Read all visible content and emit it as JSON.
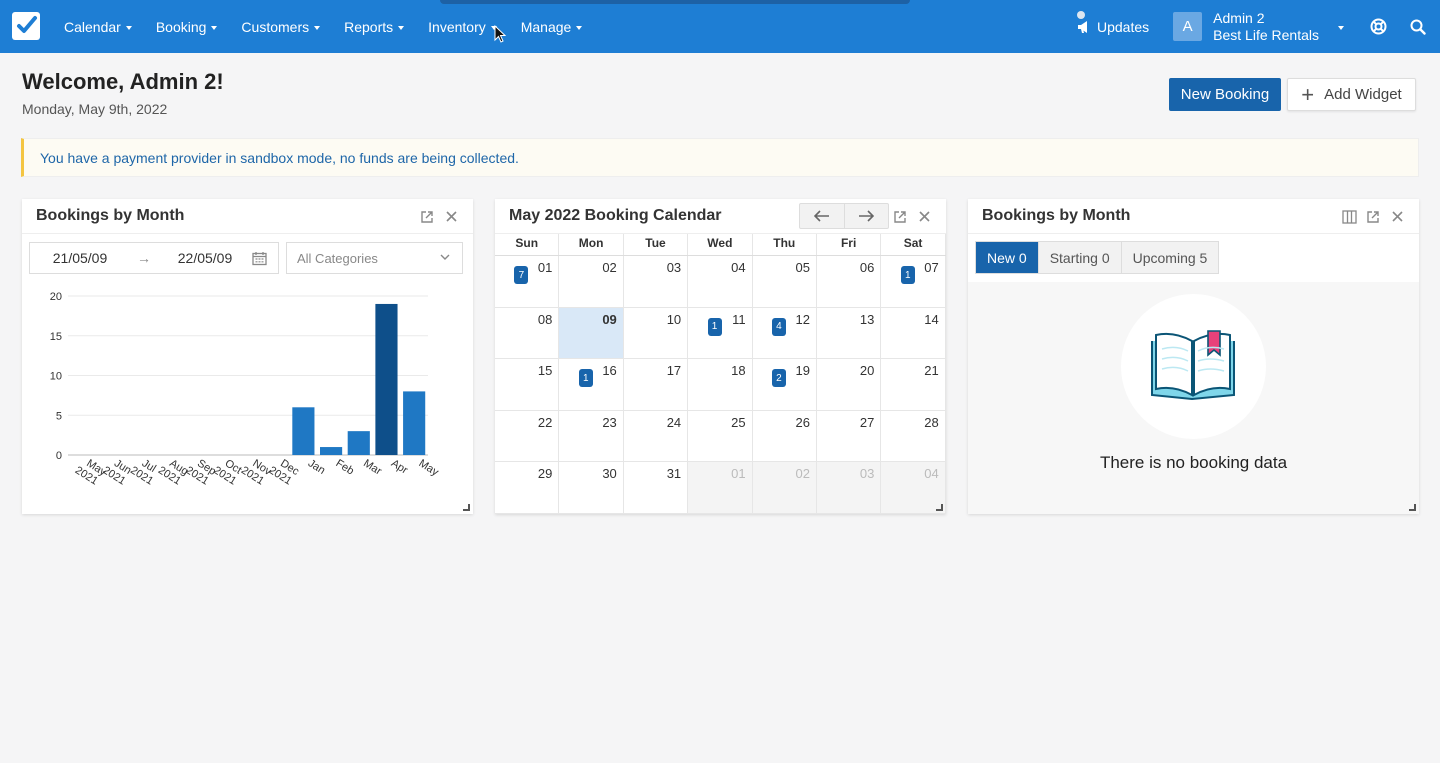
{
  "nav": {
    "menu": [
      {
        "label": "Calendar"
      },
      {
        "label": "Booking"
      },
      {
        "label": "Customers"
      },
      {
        "label": "Reports"
      },
      {
        "label": "Inventory"
      },
      {
        "label": "Manage"
      }
    ],
    "updates_label": "Updates",
    "account": {
      "avatar_letter": "A",
      "name": "Admin 2",
      "company": "Best Life Rentals"
    }
  },
  "header": {
    "welcome": "Welcome, Admin 2!",
    "date": "Monday, May 9th, 2022",
    "new_booking_label": "New Booking",
    "add_widget_label": "Add Widget"
  },
  "alert": {
    "text": "You have a payment provider in sandbox mode, no funds are being collected."
  },
  "widget1": {
    "title": "Bookings by Month",
    "range_from": "21/05/09",
    "range_to": "22/05/09",
    "category_placeholder": "All Categories"
  },
  "chart_data": {
    "type": "bar",
    "title": "Bookings by Month",
    "categories": [
      "May 2021",
      "Jun 2021",
      "Jul 2021",
      "Aug 2021",
      "Sep 2021",
      "Oct 2021",
      "Nov 2021",
      "Dec 2021",
      "Jan",
      "Feb",
      "Mar",
      "Apr",
      "May"
    ],
    "values": [
      0,
      0,
      0,
      0,
      0,
      0,
      0,
      0,
      6,
      1,
      3,
      19,
      8
    ],
    "highlight_index": 11,
    "yticks": [
      0,
      5,
      10,
      15,
      20
    ],
    "ylim": [
      0,
      20
    ],
    "colors": {
      "bar": "#1f78c4",
      "highlight": "#0e4f8a"
    }
  },
  "widget2": {
    "title": "May 2022 Booking Calendar",
    "dow": [
      "Sun",
      "Mon",
      "Tue",
      "Wed",
      "Thu",
      "Fri",
      "Sat"
    ],
    "weeks": [
      [
        {
          "d": "01",
          "b": "7"
        },
        {
          "d": "02"
        },
        {
          "d": "03"
        },
        {
          "d": "04"
        },
        {
          "d": "05"
        },
        {
          "d": "06"
        },
        {
          "d": "07",
          "b": "1"
        }
      ],
      [
        {
          "d": "08"
        },
        {
          "d": "09",
          "today": true
        },
        {
          "d": "10"
        },
        {
          "d": "11",
          "b": "1"
        },
        {
          "d": "12",
          "b": "4"
        },
        {
          "d": "13"
        },
        {
          "d": "14"
        }
      ],
      [
        {
          "d": "15"
        },
        {
          "d": "16",
          "b": "1"
        },
        {
          "d": "17"
        },
        {
          "d": "18"
        },
        {
          "d": "19",
          "b": "2"
        },
        {
          "d": "20"
        },
        {
          "d": "21"
        }
      ],
      [
        {
          "d": "22"
        },
        {
          "d": "23"
        },
        {
          "d": "24"
        },
        {
          "d": "25"
        },
        {
          "d": "26"
        },
        {
          "d": "27"
        },
        {
          "d": "28"
        }
      ],
      [
        {
          "d": "29"
        },
        {
          "d": "30"
        },
        {
          "d": "31"
        },
        {
          "d": "01",
          "other": true
        },
        {
          "d": "02",
          "other": true
        },
        {
          "d": "03",
          "other": true
        },
        {
          "d": "04",
          "other": true
        }
      ]
    ]
  },
  "widget3": {
    "title": "Bookings by Month",
    "tabs": [
      {
        "label": "New 0"
      },
      {
        "label": "Starting 0"
      },
      {
        "label": "Upcoming 5"
      }
    ],
    "empty_text": "There is no booking data"
  }
}
